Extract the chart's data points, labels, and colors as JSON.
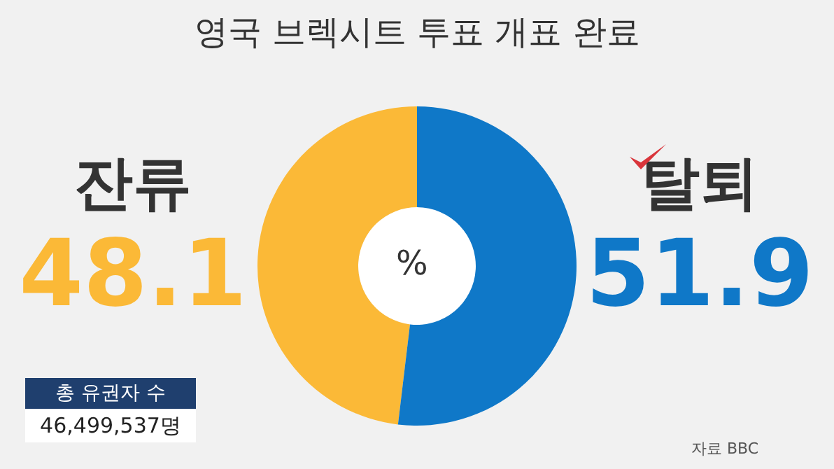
{
  "chart_data": {
    "type": "donut",
    "title": "영국 브렉시트 투표 개표 완료",
    "categories": [
      "잔류",
      "탈퇴"
    ],
    "values": [
      48.1,
      51.9
    ],
    "colors": [
      "#fbb937",
      "#0f78c8"
    ],
    "data_labels": true,
    "annotations": [
      "%",
      "총 유권자 수",
      "46,499,537명",
      "자료 BBC"
    ]
  }
}
